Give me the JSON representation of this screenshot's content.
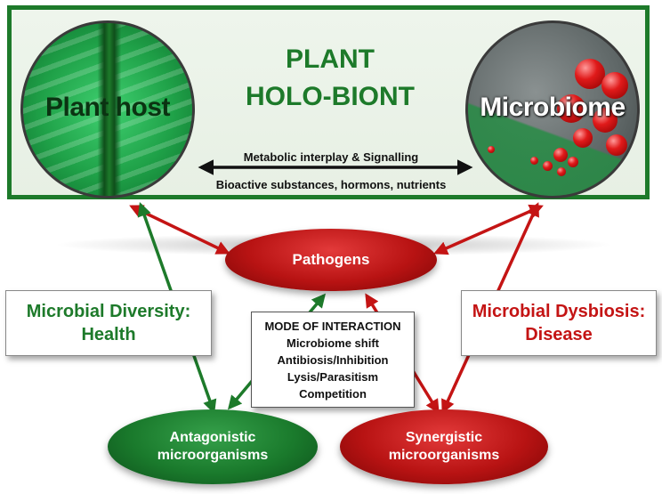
{
  "top_panel": {
    "title_line1": "PLANT",
    "title_line2": "HOLO-BIONT",
    "host_label": "Plant host",
    "microbiome_label": "Microbiome",
    "interplay_text": "Metabolic interplay & Signalling",
    "substances_text": "Bioactive substances, hormons, nutrients"
  },
  "nodes": {
    "pathogens": "Pathogens",
    "antagonistic_line1": "Antagonistic",
    "antagonistic_line2": "microorganisms",
    "synergistic_line1": "Synergistic",
    "synergistic_line2": "microorganisms"
  },
  "health_box": {
    "line1": "Microbial Diversity:",
    "line2": "Health"
  },
  "disease_box": {
    "line1": "Microbial Dysbiosis:",
    "line2": "Disease"
  },
  "mode_box": {
    "title": "MODE OF INTERACTION",
    "items": [
      "Microbiome shift",
      "Antibiosis/Inhibition",
      "Lysis/Parasitism",
      "Competition"
    ]
  },
  "colors": {
    "green": "#1d7a2a",
    "red": "#c41414",
    "black": "#111111"
  }
}
